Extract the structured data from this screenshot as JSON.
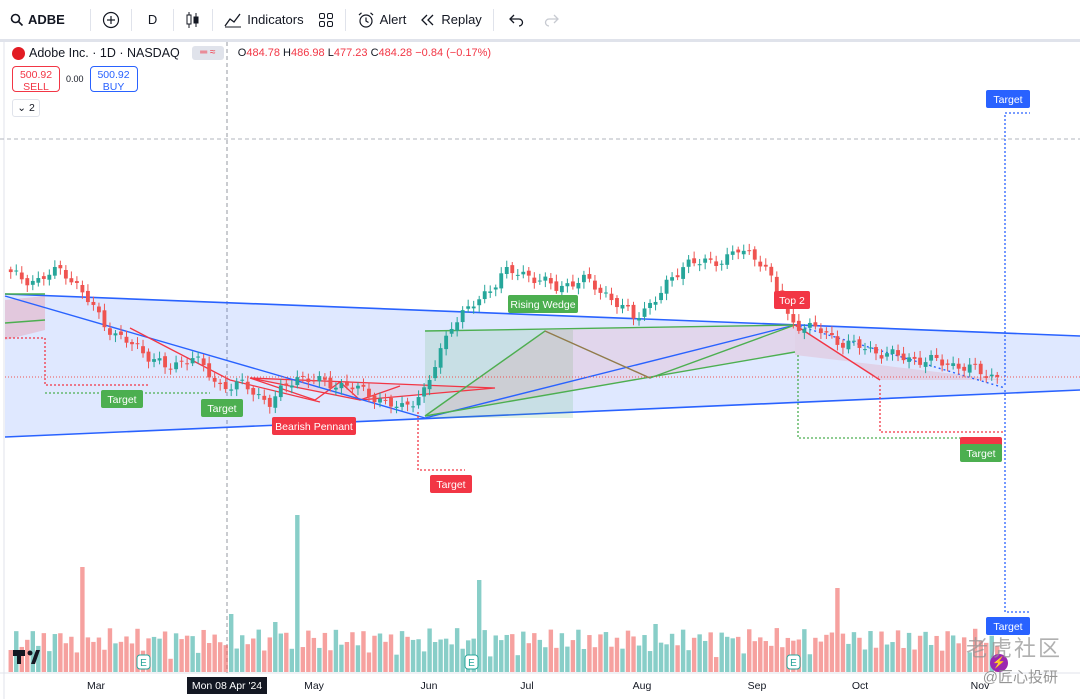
{
  "toolbar": {
    "symbol": "ADBE",
    "interval": "D",
    "indicators_label": "Indicators",
    "alert_label": "Alert",
    "replay_label": "Replay"
  },
  "legend": {
    "title": "Adobe Inc. · 1D · NASDAQ",
    "open_key": "O",
    "open": "484.78",
    "high_key": "H",
    "high": "486.98",
    "low_key": "L",
    "low": "477.23",
    "close_key": "C",
    "close": "484.28",
    "change": "−0.84 (−0.17%)"
  },
  "trade": {
    "sell_price": "500.92",
    "sell_label": "SELL",
    "spread": "0.00",
    "buy_price": "500.92",
    "buy_label": "BUY"
  },
  "collapse_count": "2",
  "annotations": {
    "target_label": "Target",
    "bearish_pennant": "Bearish Pennant",
    "rising_wedge": "Rising Wedge",
    "top2": "Top 2"
  },
  "x_axis": {
    "labels": [
      "Mar",
      "May",
      "Jun",
      "Jul",
      "Aug",
      "Sep",
      "Oct",
      "Nov"
    ],
    "crosshair_label": "Mon 08 Apr '24"
  },
  "watermark": {
    "line1": "老虎社区",
    "line2": "@匠心投研"
  },
  "colors": {
    "up": "#26a69a",
    "down": "#ef5350",
    "pattern_blue": "#2962ff",
    "pattern_green": "#4caf50",
    "pattern_red": "#f23645"
  },
  "chart_data": {
    "type": "candlestick",
    "symbol": "ADBE",
    "timeframe": "1D",
    "close_series": [
      [
        "2024-02-20",
        560
      ],
      [
        "2024-02-27",
        555
      ],
      [
        "2024-03-05",
        565
      ],
      [
        "2024-03-12",
        540
      ],
      [
        "2024-03-19",
        515
      ],
      [
        "2024-03-26",
        505
      ],
      [
        "2024-04-02",
        490
      ],
      [
        "2024-04-09",
        500
      ],
      [
        "2024-04-16",
        478
      ],
      [
        "2024-04-23",
        478
      ],
      [
        "2024-04-30",
        465
      ],
      [
        "2024-05-07",
        485
      ],
      [
        "2024-05-14",
        480
      ],
      [
        "2024-05-21",
        478
      ],
      [
        "2024-05-28",
        470
      ],
      [
        "2024-06-04",
        460
      ],
      [
        "2024-06-11",
        475
      ],
      [
        "2024-06-14",
        525
      ],
      [
        "2024-06-21",
        540
      ],
      [
        "2024-07-01",
        562
      ],
      [
        "2024-07-09",
        560
      ],
      [
        "2024-07-16",
        550
      ],
      [
        "2024-07-23",
        557
      ],
      [
        "2024-07-30",
        545
      ],
      [
        "2024-08-06",
        528
      ],
      [
        "2024-08-13",
        545
      ],
      [
        "2024-08-20",
        570
      ],
      [
        "2024-08-27",
        568
      ],
      [
        "2024-09-03",
        578
      ],
      [
        "2024-09-10",
        570
      ],
      [
        "2024-09-13",
        525
      ],
      [
        "2024-09-20",
        520
      ],
      [
        "2024-09-27",
        510
      ],
      [
        "2024-10-04",
        505
      ],
      [
        "2024-10-11",
        500
      ],
      [
        "2024-10-18",
        497
      ],
      [
        "2024-10-25",
        495
      ],
      [
        "2024-11-01",
        490
      ],
      [
        "2024-11-06",
        484.28
      ]
    ]
  }
}
